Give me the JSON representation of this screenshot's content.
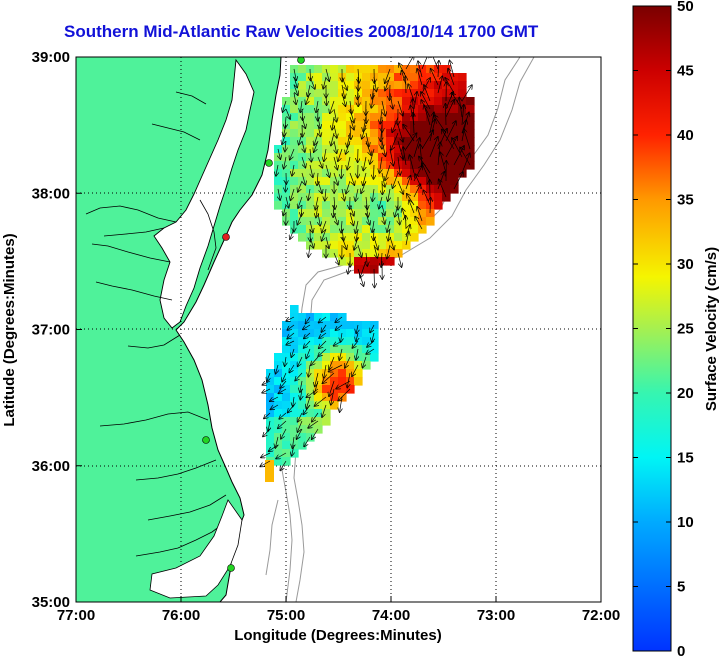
{
  "title": "Southern Mid-Atlantic Raw Velocities 2008/10/14 1700 GMT",
  "map": {
    "xlabel": "Longitude (Degrees:Minutes)",
    "ylabel": "Latitude (Degrees:Minutes)",
    "lon_range": [
      -77,
      -72
    ],
    "lat_range": [
      35,
      39
    ],
    "lon_ticks": [
      {
        "value": -77,
        "label": "77:00"
      },
      {
        "value": -76,
        "label": "76:00"
      },
      {
        "value": -75,
        "label": "75:00"
      },
      {
        "value": -74,
        "label": "74:00"
      },
      {
        "value": -73,
        "label": "73:00"
      },
      {
        "value": -72,
        "label": "72:00"
      }
    ],
    "lat_ticks": [
      {
        "value": 39,
        "label": "39:00"
      },
      {
        "value": 38,
        "label": "38:00"
      },
      {
        "value": 37,
        "label": "37:00"
      },
      {
        "value": 36,
        "label": "36:00"
      },
      {
        "value": 35,
        "label": "35:00"
      }
    ],
    "colors": {
      "land": "#4ff29a",
      "coast": "#000000",
      "ocean": "#ffffff",
      "contour": "#9a9a9a",
      "station": "#22d422"
    }
  },
  "colorbar": {
    "label": "Surface Velocity (cm/s)",
    "range": [
      0,
      50
    ],
    "ticks": [
      "0",
      "5",
      "10",
      "15",
      "20",
      "25",
      "30",
      "35",
      "40",
      "45",
      "50"
    ]
  }
}
